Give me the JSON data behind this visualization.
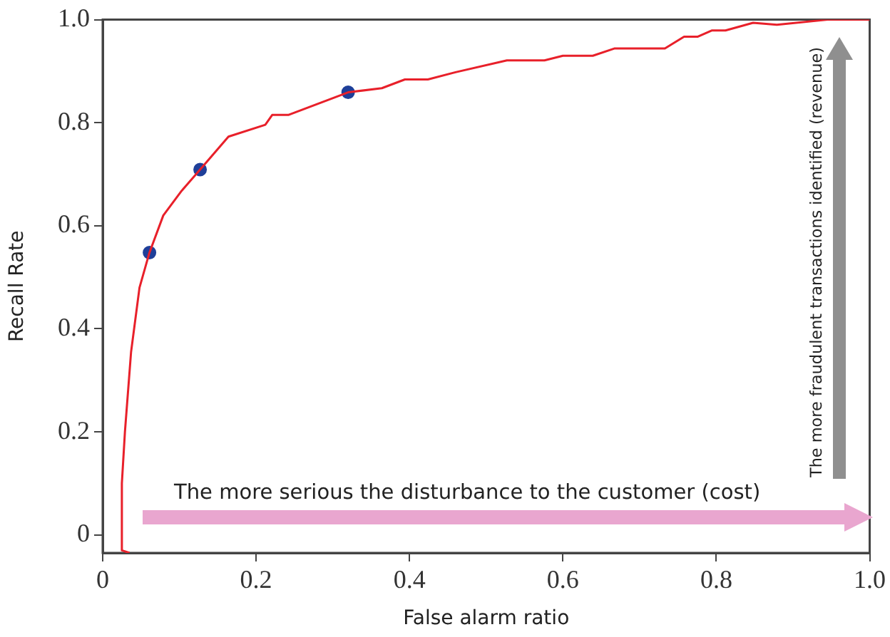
{
  "chart_data": {
    "type": "line",
    "xlabel": "False alarm ratio",
    "ylabel": "Recall Rate",
    "xlim": [
      0,
      1.0
    ],
    "xticks": [
      {
        "value": 0,
        "label": "0"
      },
      0.2,
      0.4,
      0.6,
      0.8,
      {
        "value": 1,
        "label": "1.0"
      }
    ],
    "ylim": [
      -0.035,
      1.0
    ],
    "yticks": [
      {
        "value": 0,
        "label": "0"
      },
      0.2,
      0.4,
      0.6,
      0.8,
      {
        "value": 1,
        "label": "1.0"
      }
    ],
    "annotations": [
      "The more serious the disturbance to the customer (cost)",
      "The more fraudulent transactions identified (revenue)"
    ],
    "series": [
      {
        "type": "line",
        "color": "#e8202a",
        "marker": "none",
        "x": [
          0.035,
          0.025,
          0.025,
          0.029,
          0.037,
          0.048,
          0.061,
          0.079,
          0.103,
          0.127,
          0.164,
          0.212,
          0.221,
          0.242,
          0.32,
          0.364,
          0.394,
          0.424,
          0.46,
          0.527,
          0.576,
          0.6,
          0.639,
          0.667,
          0.733,
          0.758,
          0.776,
          0.794,
          0.812,
          0.848,
          0.879,
          0.945,
          1.0
        ],
        "values": [
          -0.035,
          -0.03,
          0.1,
          0.2,
          0.355,
          0.48,
          0.548,
          0.62,
          0.668,
          0.709,
          0.773,
          0.796,
          0.815,
          0.815,
          0.859,
          0.867,
          0.884,
          0.884,
          0.898,
          0.921,
          0.921,
          0.93,
          0.93,
          0.944,
          0.944,
          0.967,
          0.967,
          0.979,
          0.979,
          0.994,
          0.99,
          1.0,
          1.0
        ]
      },
      {
        "type": "scatter",
        "color": "#1f3f99",
        "marker": "circle",
        "x": [
          0.061,
          0.127,
          0.32
        ],
        "values": [
          0.548,
          0.709,
          0.859
        ]
      }
    ]
  }
}
